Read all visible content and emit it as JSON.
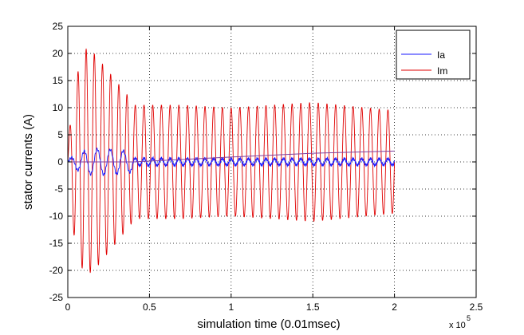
{
  "chart_data": {
    "type": "line",
    "title": "",
    "xlabel": "simulation time (0.01msec)",
    "ylabel": "stator currents (A)",
    "x_multiplier": "x 10",
    "x_multiplier_exp": "5",
    "xlim": [
      0,
      2.5
    ],
    "ylim": [
      -25,
      25
    ],
    "xticks": [
      0,
      0.5,
      1,
      1.5,
      2,
      2.5
    ],
    "xtick_labels": [
      "0",
      "0.5",
      "1",
      "1.5",
      "2",
      "2.5"
    ],
    "yticks": [
      25,
      20,
      15,
      10,
      5,
      0,
      -5,
      -10,
      -15,
      -20,
      -25
    ],
    "ytick_labels": [
      "25",
      "20",
      "15",
      "10",
      "5",
      "0",
      "-5",
      "-10",
      "-15",
      "-20",
      "-25"
    ],
    "grid": true,
    "grid_style": "dotted",
    "legend_position": "top-right",
    "series": [
      {
        "name": "Ia",
        "color": "#1a1aff",
        "segments": [
          {
            "x_start": 0.0,
            "x_end": 0.4,
            "cycles": 5,
            "envelope": [
              [
                0.0,
                0.3
              ],
              [
                0.05,
                1.4
              ],
              [
                0.12,
                2.2
              ],
              [
                0.2,
                2.4
              ],
              [
                0.3,
                2.2
              ],
              [
                0.4,
                1.8
              ]
            ]
          },
          {
            "x_start": 0.4,
            "x_end": 2.0,
            "cycles": 30,
            "envelope": [
              [
                0.4,
                0.7
              ],
              [
                1.0,
                0.6
              ],
              [
                2.0,
                0.6
              ]
            ]
          }
        ],
        "dc_drift": [
          [
            0.0,
            0.0
          ],
          [
            0.4,
            0.0
          ],
          [
            1.0,
            0.9
          ],
          [
            1.5,
            1.6
          ],
          [
            2.0,
            2.0
          ]
        ],
        "drift_label": "near-zero envelope with a slowly rising trace to 2 A by x = 2"
      },
      {
        "name": "Im",
        "color": "#e00000",
        "segments": [
          {
            "x_start": 0.0,
            "x_end": 0.4,
            "cycles": 8,
            "envelope": [
              [
                0.0,
                3
              ],
              [
                0.04,
                14
              ],
              [
                0.1,
                21
              ],
              [
                0.16,
                20
              ],
              [
                0.24,
                17
              ],
              [
                0.32,
                14
              ],
              [
                0.4,
                11
              ]
            ]
          },
          {
            "x_start": 0.4,
            "x_end": 2.0,
            "cycles": 30,
            "envelope": [
              [
                0.4,
                10.5
              ],
              [
                0.7,
                10.5
              ],
              [
                1.0,
                10.0
              ],
              [
                1.5,
                11.0
              ],
              [
                2.0,
                9.5
              ]
            ]
          }
        ]
      }
    ]
  }
}
